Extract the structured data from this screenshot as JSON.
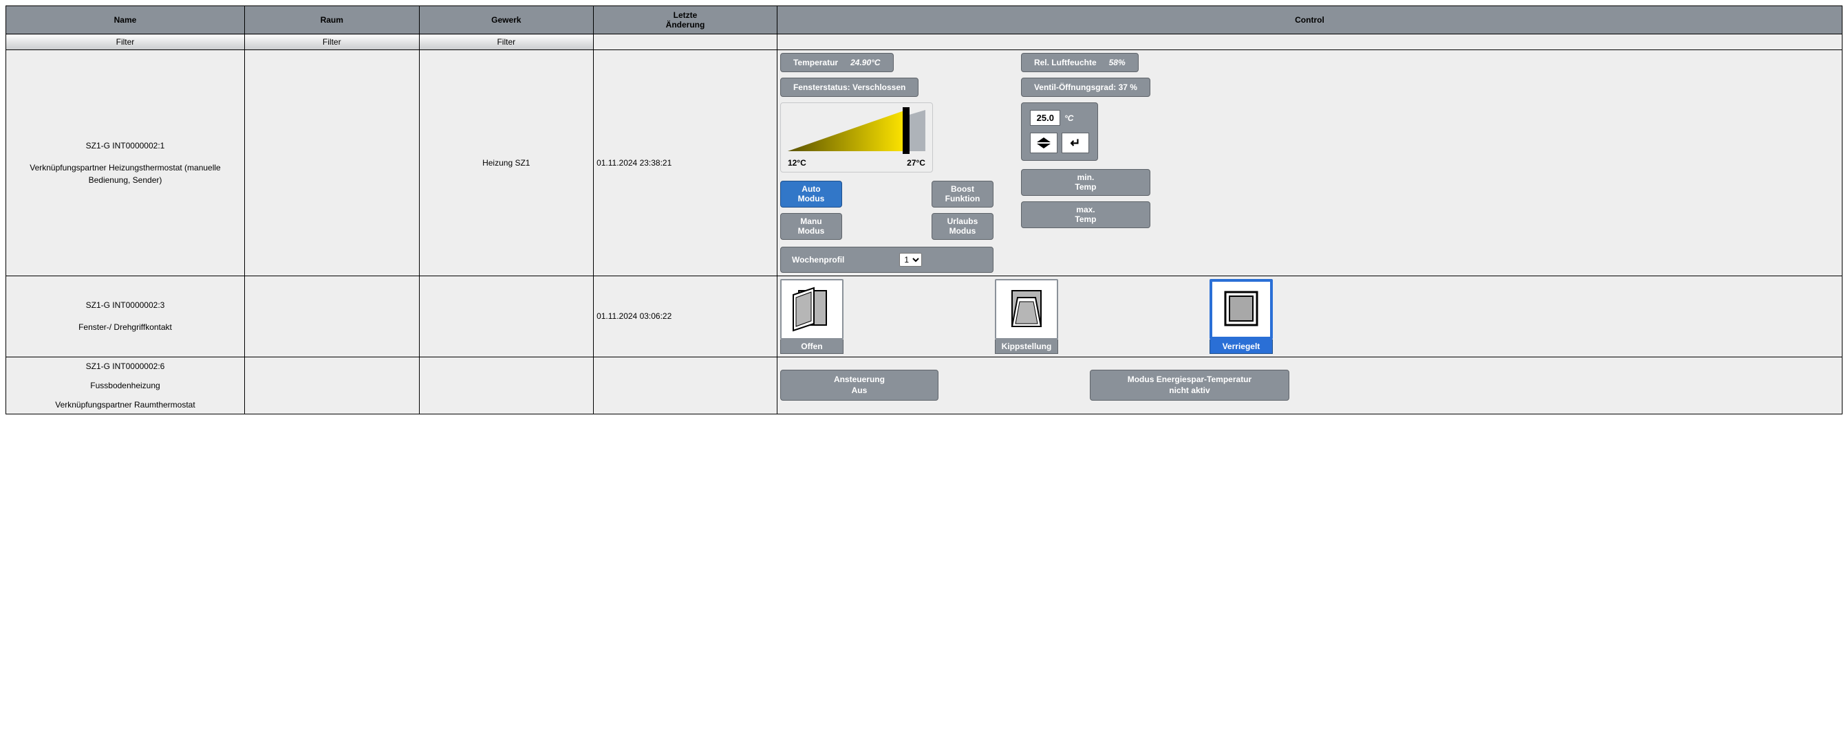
{
  "colors": {
    "panel_gray": "#8a9199",
    "panel_border": "#5e6369",
    "active_blue": "#2a6fd6",
    "bg_cell": "#eeeeee",
    "tri_fill_start": "#5a5200",
    "tri_fill_end": "#ffe600",
    "tri_bg": "#aeb3b9"
  },
  "table": {
    "headers": {
      "name": "Name",
      "room": "Raum",
      "trade": "Gewerk",
      "last_change_l1": "Letzte",
      "last_change_l2": "Änderung",
      "control": "Control"
    },
    "filter_label": "Filter",
    "col_widths_pct": [
      13,
      9.5,
      9.5,
      10,
      58
    ]
  },
  "row1": {
    "name_id": "SZ1-G INT0000002:1",
    "name_desc": "Verknüpfungspartner Heizungsthermostat (manuelle Bedienung, Sender)",
    "room": "",
    "trade": "Heizung SZ1",
    "timestamp": "01.11.2024 23:38:21",
    "temp_label": "Temperatur",
    "temp_value": "24.90°C",
    "humidity_label": "Rel. Luftfeuchte",
    "humidity_value": "58%",
    "window_status": "Fensterstatus: Verschlossen",
    "valve_status": "Ventil-Öffnungsgrad: 37 %",
    "slider": {
      "min_label": "12°C",
      "max_label": "27°C",
      "fill_pct": 86,
      "handle_pct": 86
    },
    "setpoint": {
      "value": "25.0",
      "unit": "°C"
    },
    "modes": {
      "auto_l1": "Auto",
      "auto_l2": "Modus",
      "manu_l1": "Manu",
      "manu_l2": "Modus",
      "boost_l1": "Boost",
      "boost_l2": "Funktion",
      "urlaub_l1": "Urlaubs",
      "urlaub_l2": "Modus",
      "min_l1": "min.",
      "min_l2": "Temp",
      "max_l1": "max.",
      "max_l2": "Temp"
    },
    "week": {
      "label": "Wochenprofil",
      "selected": "1",
      "options": [
        "1"
      ]
    }
  },
  "row2": {
    "name_id": "SZ1-G INT0000002:3",
    "name_desc": "Fenster-/ Drehgriffkontakt",
    "timestamp": "01.11.2024 03:06:22",
    "states": {
      "open": "Offen",
      "tilt": "Kippstellung",
      "locked": "Verriegelt",
      "active": "locked"
    }
  },
  "row3": {
    "name_id": "SZ1-G INT0000002:6",
    "name_line2": "Fussbodenheizung",
    "name_line3": "Verknüpfungspartner Raumthermostat",
    "control_l1": "Ansteuerung",
    "control_l2": "Aus",
    "energy_l1": "Modus Energiespar-Temperatur",
    "energy_l2": "nicht aktiv"
  }
}
